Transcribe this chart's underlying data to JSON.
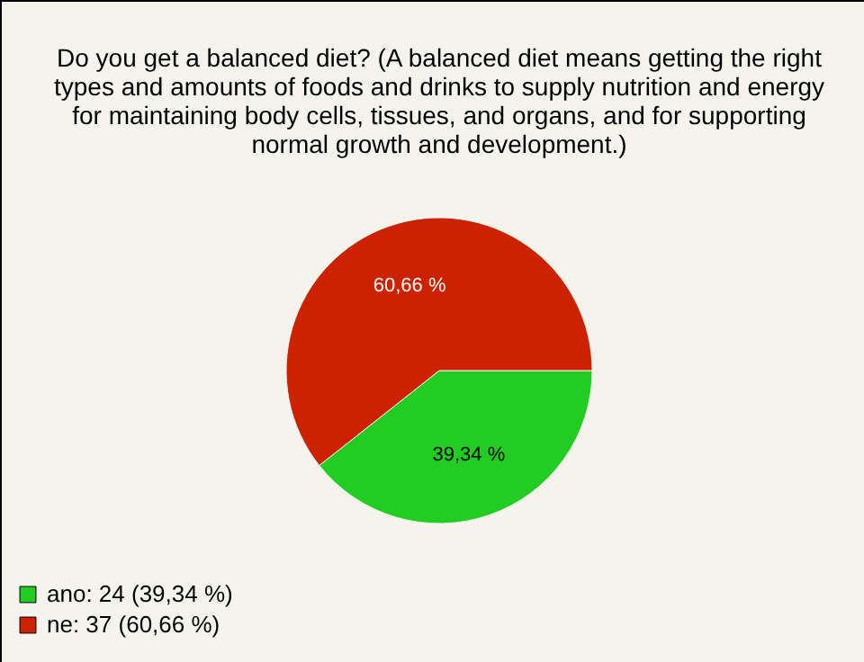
{
  "chart_data": {
    "type": "pie",
    "title": "Do you get a balanced diet? (A balanced diet means getting the right types and amounts of foods and drinks to supply nutrition and energy for maintaining body cells, tissues, and organs, and for supporting normal growth and development.)",
    "categories": [
      "ano: 24 (39,34 %)",
      "ne: 37 (60,66 %)"
    ],
    "values": [
      39.34,
      60.66
    ],
    "colors": [
      "#22cc22",
      "#cc2200"
    ],
    "value_labels": [
      "39,34 %",
      "60,66 %"
    ],
    "legend": "bottom left"
  }
}
